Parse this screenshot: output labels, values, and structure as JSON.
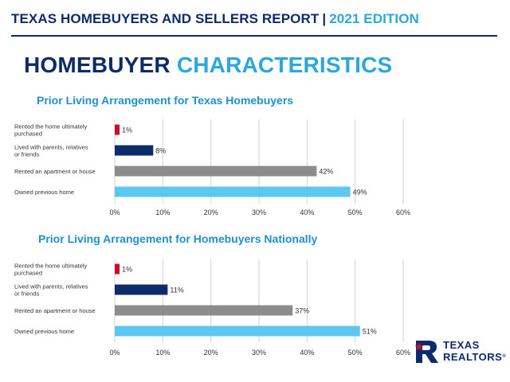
{
  "header": {
    "report_title": "TEXAS HOMEBUYERS AND SELLERS REPORT",
    "separator": "|",
    "edition": "2021 EDITION"
  },
  "section": {
    "title_part1": "HOMEBUYER",
    "title_part2": "CHARACTERISTICS"
  },
  "logo": {
    "line1": "TEXAS",
    "line2": "REALTORS",
    "trademark": "®",
    "icon": "texas-realtors-logo-icon"
  },
  "colors": {
    "navy": "#0d2a6b",
    "accent_blue": "#2aa7dc",
    "bar_red": "#c8102e",
    "bar_navy": "#0d2a6b",
    "bar_gray": "#8c8c8c",
    "bar_light_blue": "#5cc8f2"
  },
  "chart_data": [
    {
      "type": "bar",
      "orientation": "horizontal",
      "title": "Prior Living Arrangement for Texas Homebuyers",
      "categories": [
        "Rented the home ultimately purchased",
        "Lived with parents, relatives or friends",
        "Rented an apartment or house",
        "Owned previous home"
      ],
      "values": [
        1,
        8,
        42,
        49
      ],
      "value_labels": [
        "1%",
        "8%",
        "42%",
        "49%"
      ],
      "bar_colors": [
        "#c8102e",
        "#0d2a6b",
        "#8c8c8c",
        "#5cc8f2"
      ],
      "xlim": [
        0,
        60
      ],
      "xticks": [
        "0%",
        "10%",
        "20%",
        "30%",
        "40%",
        "50%",
        "60%"
      ],
      "grid": "vertical"
    },
    {
      "type": "bar",
      "orientation": "horizontal",
      "title": "Prior Living Arrangement for Homebuyers Nationally",
      "categories": [
        "Rented the home ultimately purchased",
        "Lived with parents, relatives or friends",
        "Rented an apartment or house",
        "Owned previous home"
      ],
      "values": [
        1,
        11,
        37,
        51
      ],
      "value_labels": [
        "1%",
        "11%",
        "37%",
        "51%"
      ],
      "bar_colors": [
        "#c8102e",
        "#0d2a6b",
        "#8c8c8c",
        "#5cc8f2"
      ],
      "xlim": [
        0,
        60
      ],
      "xticks": [
        "0%",
        "10%",
        "20%",
        "30%",
        "40%",
        "50%",
        "60%"
      ],
      "grid": "vertical"
    }
  ]
}
